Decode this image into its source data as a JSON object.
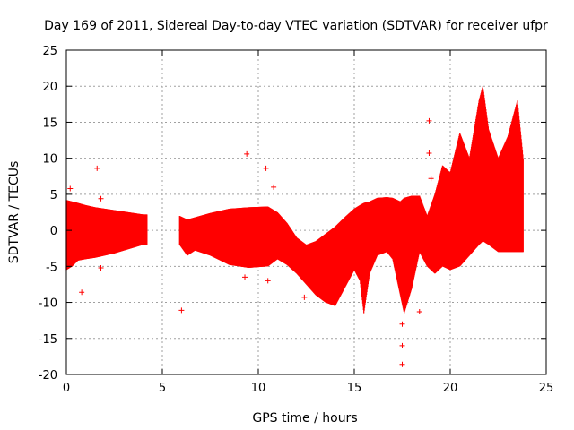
{
  "chart_data": {
    "type": "scatter",
    "title": "Day 169 of 2011, Sidereal Day-to-day VTEC variation (SDTVAR) for receiver ufpr",
    "xlabel": "GPS time / hours",
    "ylabel": "SDTVAR / TECUs",
    "xlim": [
      0,
      25
    ],
    "ylim": [
      -20,
      25
    ],
    "xticks": [
      "0",
      "5",
      "10",
      "15",
      "20",
      "25"
    ],
    "yticks": [
      "-20",
      "-15",
      "-10",
      "-5",
      "0",
      "5",
      "10",
      "15",
      "20",
      "25"
    ],
    "grid": true,
    "series": [
      {
        "name": "SDTVAR",
        "color": "#ff0000",
        "marker": "plus",
        "note": "dense band of samples every ~0.01 h; each point gives the band lower and upper limits",
        "envelope": [
          {
            "x": 0.0,
            "lo": -5.5,
            "hi": 4.2
          },
          {
            "x": 0.3,
            "lo": -5.0,
            "hi": 4.0
          },
          {
            "x": 0.6,
            "lo": -4.2,
            "hi": 3.8
          },
          {
            "x": 1.0,
            "lo": -4.0,
            "hi": 3.5
          },
          {
            "x": 1.5,
            "lo": -3.8,
            "hi": 3.2
          },
          {
            "x": 2.0,
            "lo": -3.5,
            "hi": 3.0
          },
          {
            "x": 2.5,
            "lo": -3.2,
            "hi": 2.8
          },
          {
            "x": 3.0,
            "lo": -2.8,
            "hi": 2.6
          },
          {
            "x": 3.5,
            "lo": -2.4,
            "hi": 2.4
          },
          {
            "x": 4.0,
            "lo": -2.0,
            "hi": 2.2
          },
          {
            "x": 4.2,
            "lo": -2.0,
            "hi": 2.2
          },
          {
            "x": null,
            "lo": null,
            "hi": null
          },
          {
            "x": 5.9,
            "lo": -2.0,
            "hi": 2.0
          },
          {
            "x": 6.3,
            "lo": -3.5,
            "hi": 1.5
          },
          {
            "x": 6.7,
            "lo": -2.8,
            "hi": 1.8
          },
          {
            "x": 7.5,
            "lo": -3.5,
            "hi": 2.4
          },
          {
            "x": 8.5,
            "lo": -4.8,
            "hi": 3.0
          },
          {
            "x": 9.5,
            "lo": -5.2,
            "hi": 3.2
          },
          {
            "x": 10.5,
            "lo": -5.0,
            "hi": 3.3
          },
          {
            "x": 11.0,
            "lo": -4.0,
            "hi": 2.5
          },
          {
            "x": 11.5,
            "lo": -4.8,
            "hi": 1.0
          },
          {
            "x": 12.0,
            "lo": -6.0,
            "hi": -1.0
          },
          {
            "x": 12.5,
            "lo": -7.5,
            "hi": -2.0
          },
          {
            "x": 13.0,
            "lo": -9.0,
            "hi": -1.5
          },
          {
            "x": 13.5,
            "lo": -10.0,
            "hi": -0.5
          },
          {
            "x": 14.0,
            "lo": -10.5,
            "hi": 0.5
          },
          {
            "x": 14.5,
            "lo": -8.0,
            "hi": 1.8
          },
          {
            "x": 15.0,
            "lo": -5.5,
            "hi": 3.0
          },
          {
            "x": 15.3,
            "lo": -7.0,
            "hi": 3.5
          },
          {
            "x": 15.5,
            "lo": -11.5,
            "hi": 3.8
          },
          {
            "x": 15.8,
            "lo": -6.0,
            "hi": 4.0
          },
          {
            "x": 16.2,
            "lo": -3.5,
            "hi": 4.5
          },
          {
            "x": 16.7,
            "lo": -3.0,
            "hi": 4.6
          },
          {
            "x": 17.0,
            "lo": -4.0,
            "hi": 4.5
          },
          {
            "x": 17.4,
            "lo": -9.0,
            "hi": 4.0
          },
          {
            "x": 17.6,
            "lo": -11.5,
            "hi": 4.5
          },
          {
            "x": 18.0,
            "lo": -8.0,
            "hi": 4.8
          },
          {
            "x": 18.4,
            "lo": -3.0,
            "hi": 4.8
          },
          {
            "x": 18.8,
            "lo": -5.0,
            "hi": 2.0
          },
          {
            "x": 19.2,
            "lo": -6.0,
            "hi": 5.0
          },
          {
            "x": 19.6,
            "lo": -5.0,
            "hi": 9.0
          },
          {
            "x": 20.0,
            "lo": -5.5,
            "hi": 8.0
          },
          {
            "x": 20.5,
            "lo": -5.0,
            "hi": 13.5
          },
          {
            "x": 21.0,
            "lo": -3.5,
            "hi": 10.0
          },
          {
            "x": 21.5,
            "lo": -2.0,
            "hi": 18.0
          },
          {
            "x": 21.7,
            "lo": -1.5,
            "hi": 20.0
          },
          {
            "x": 22.0,
            "lo": -2.0,
            "hi": 14.0
          },
          {
            "x": 22.5,
            "lo": -3.0,
            "hi": 10.0
          },
          {
            "x": 23.0,
            "lo": -3.0,
            "hi": 13.0
          },
          {
            "x": 23.5,
            "lo": -3.0,
            "hi": 18.0
          },
          {
            "x": 23.8,
            "lo": -3.0,
            "hi": 10.0
          }
        ],
        "outliers": [
          {
            "x": 0.2,
            "y": 5.8
          },
          {
            "x": 0.8,
            "y": -8.6
          },
          {
            "x": 1.6,
            "y": 8.6
          },
          {
            "x": 1.8,
            "y": 4.4
          },
          {
            "x": 1.8,
            "y": -5.2
          },
          {
            "x": 6.0,
            "y": -11.1
          },
          {
            "x": 9.3,
            "y": -6.5
          },
          {
            "x": 9.4,
            "y": 10.6
          },
          {
            "x": 10.4,
            "y": 8.6
          },
          {
            "x": 10.5,
            "y": -7.0
          },
          {
            "x": 10.8,
            "y": 6.0
          },
          {
            "x": 12.4,
            "y": -9.3
          },
          {
            "x": 17.5,
            "y": -13.0
          },
          {
            "x": 17.5,
            "y": -16.0
          },
          {
            "x": 17.5,
            "y": -18.6
          },
          {
            "x": 18.4,
            "y": -11.3
          },
          {
            "x": 18.9,
            "y": 15.2
          },
          {
            "x": 18.9,
            "y": 10.7
          },
          {
            "x": 19.0,
            "y": 7.2
          }
        ]
      }
    ]
  }
}
